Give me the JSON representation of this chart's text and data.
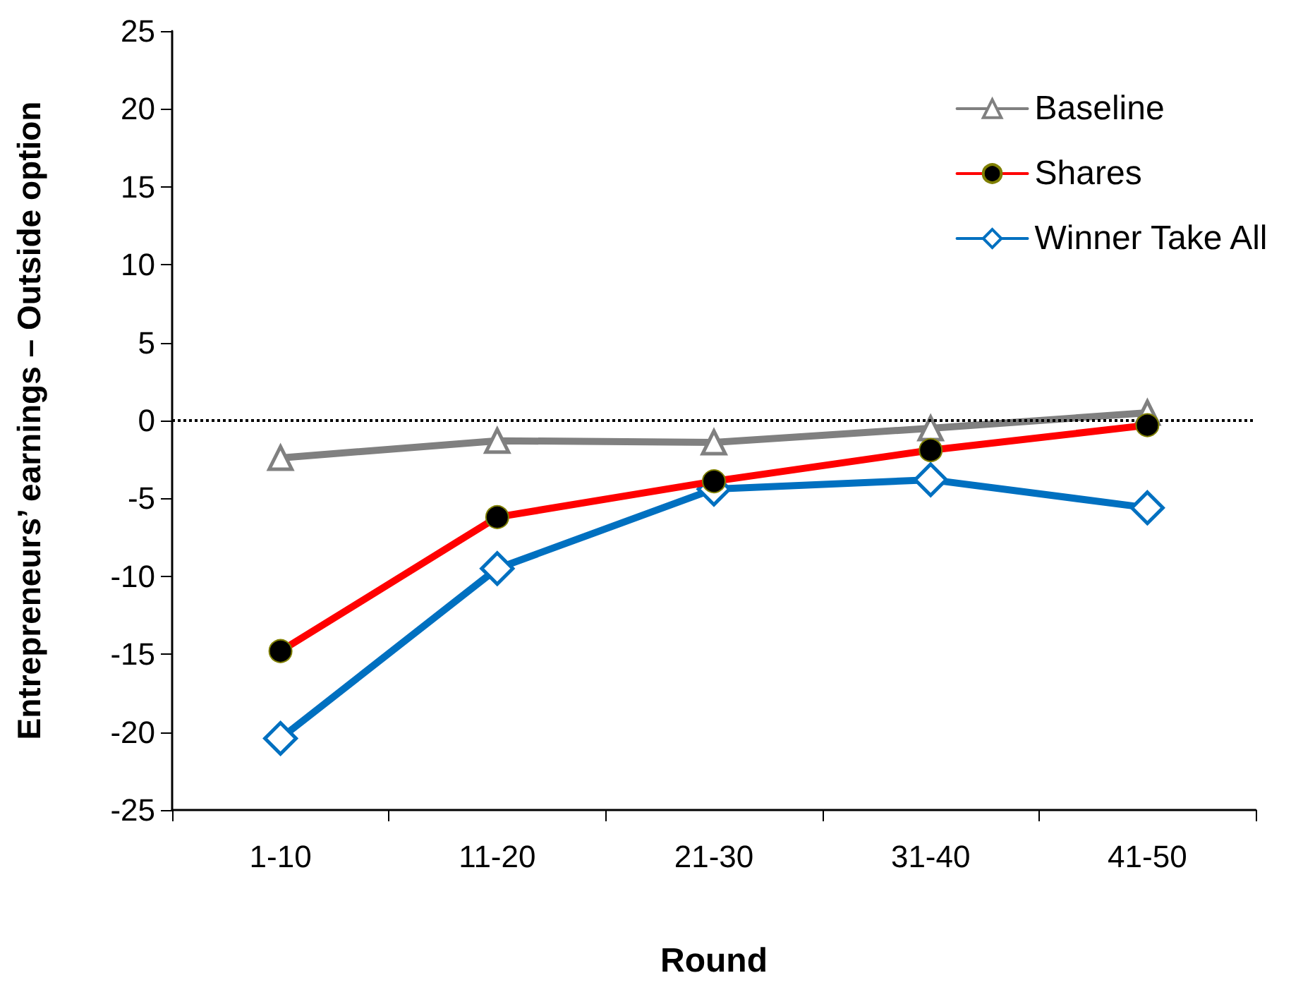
{
  "chart_data": {
    "type": "line",
    "xlabel": "Round",
    "ylabel": "Entrepreneurs’ earnings – Outside option",
    "categories": [
      "1-10",
      "11-20",
      "21-30",
      "31-40",
      "41-50"
    ],
    "series": [
      {
        "name": "Baseline",
        "color": "#808080",
        "marker": "triangle",
        "values": [
          -2.4,
          -1.3,
          -1.4,
          -0.5,
          0.5
        ]
      },
      {
        "name": "Shares",
        "color": "#ff0000",
        "marker": "circle",
        "values": [
          -14.8,
          -6.2,
          -3.9,
          -1.9,
          -0.3
        ]
      },
      {
        "name": "Winner Take All",
        "color": "#0070c0",
        "marker": "diamond",
        "values": [
          -20.4,
          -9.5,
          -4.4,
          -3.8,
          -5.6
        ]
      }
    ],
    "ylim": [
      -25,
      25
    ],
    "yticks": [
      -25,
      -20,
      -15,
      -10,
      -5,
      0,
      5,
      10,
      15,
      20,
      25
    ],
    "ref_lines": [
      {
        "axis": "y",
        "value": 0,
        "color": "#000000",
        "line_style": "dotted"
      }
    ],
    "grid": false,
    "legend": "top right",
    "line_style": "solid"
  }
}
